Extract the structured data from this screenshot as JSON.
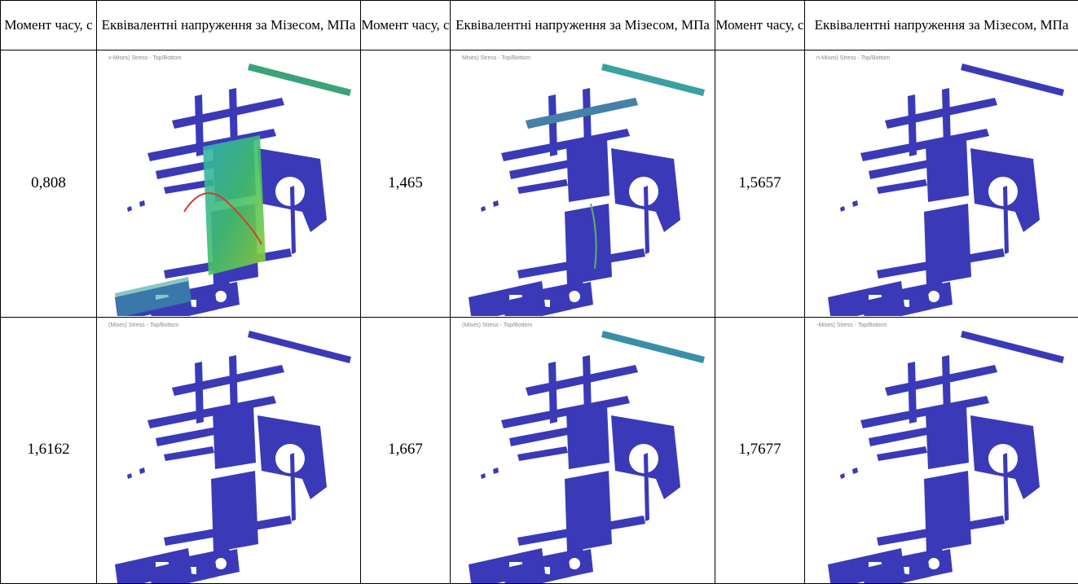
{
  "table": {
    "header": [
      "Момент часу, с",
      "Еквівалентні напруження за Мізесом, МПа",
      "Момент часу, с",
      "Еквівалентні напруження за Мізесом, МПа",
      "Момент часу, с",
      "Еквівалентні напруження за Мізесом, МПа"
    ],
    "rows": [
      [
        {
          "time": "0,808",
          "caption": "v-Mises) Stress - Top/Bottom"
        },
        {
          "time": "1,465",
          "caption": "Mises) Stress - Top/Bottom"
        },
        {
          "time": "1,5657",
          "caption": "n-Mises) Stress - Top/Bottom"
        }
      ],
      [
        {
          "time": "1,6162",
          "caption": "(Mises) Stress - Top/Bottom"
        },
        {
          "time": "1,667",
          "caption": "(Mises) Stress - Top/Bottom"
        },
        {
          "time": "1,7677",
          "caption": "-Mises) Stress - Top/Bottom"
        }
      ]
    ]
  }
}
